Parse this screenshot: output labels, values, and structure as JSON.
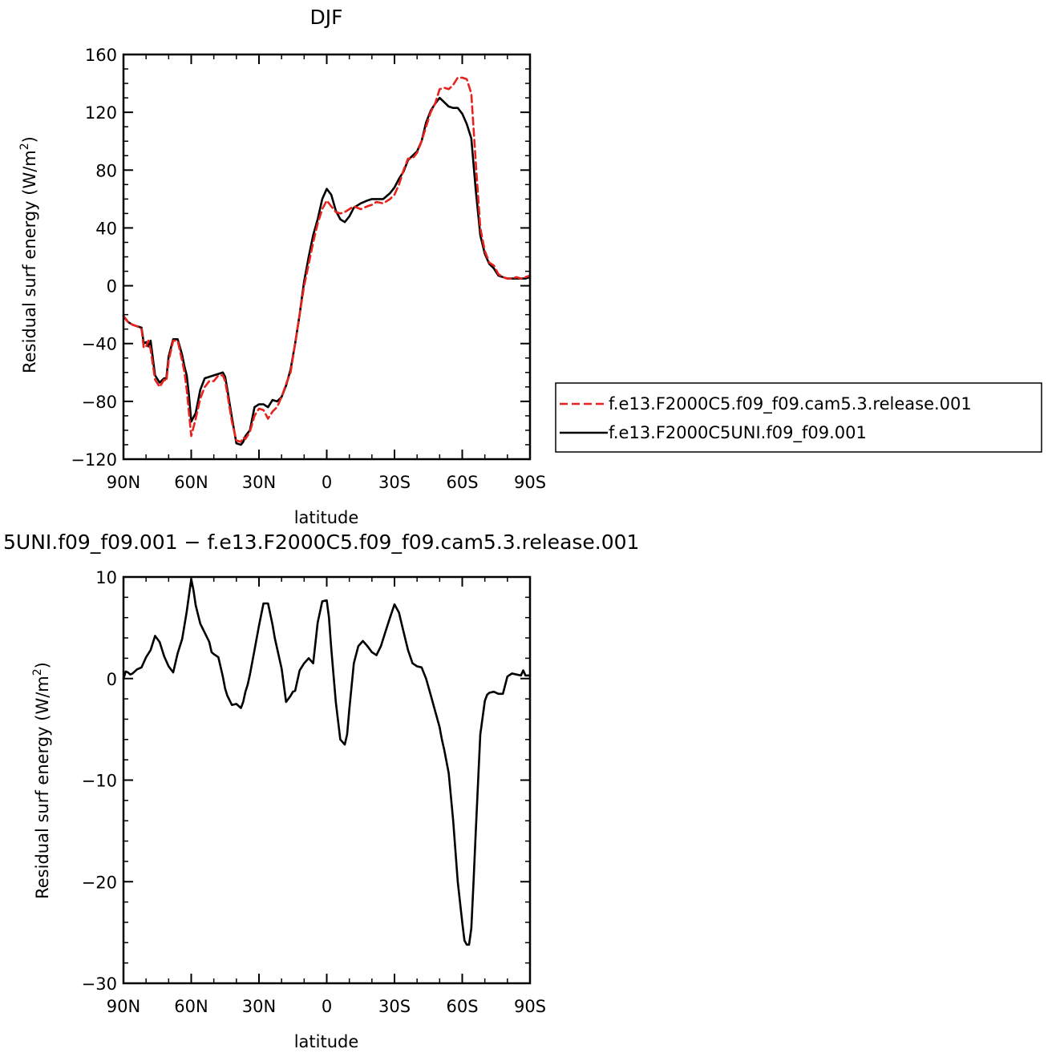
{
  "chart_data": [
    {
      "type": "line",
      "title": "DJF",
      "xlabel": "latitude",
      "ylabel": "Residual surf energy (W/m²)",
      "ylabel_main": "Residual surf energy (W/m",
      "ylabel_sup": "2",
      "ylabel_close": ")",
      "xlim": [
        -90,
        90
      ],
      "ylim": [
        -120,
        160
      ],
      "xticks": [
        -90,
        -60,
        -30,
        0,
        30,
        60,
        90
      ],
      "xtick_labels": [
        "90N",
        "60N",
        "30N",
        "0",
        "30S",
        "60S",
        "90S"
      ],
      "yticks": [
        -120,
        -80,
        -40,
        0,
        40,
        80,
        120,
        160
      ],
      "ytick_labels": [
        "−120",
        "−80",
        "−40",
        "0",
        "40",
        "80",
        "120",
        "160"
      ],
      "grid": false,
      "legend": "right",
      "series": [
        {
          "name": "f.e13.F2000C5.f09_f09.cam5.3.release.001",
          "color": "#e8221c",
          "dash": "dashed",
          "x": [
            -90,
            -88,
            -86,
            -84,
            -82,
            -81,
            -80,
            -79,
            -78,
            -76,
            -74,
            -72,
            -71,
            -70,
            -68,
            -66,
            -64,
            -63,
            -62,
            -61,
            -60,
            -58,
            -56,
            -54,
            -52,
            -50,
            -48,
            -46,
            -45,
            -44,
            -42,
            -40,
            -38,
            -37,
            -36,
            -34,
            -32,
            -30,
            -28,
            -26,
            -24,
            -22,
            -20,
            -18,
            -16,
            -14,
            -12,
            -10,
            -8,
            -6,
            -4,
            -2,
            0,
            2,
            4,
            6,
            8,
            10,
            12,
            15,
            18,
            20,
            22,
            25,
            28,
            30,
            32,
            34,
            36,
            38,
            40,
            42,
            44,
            46,
            48,
            50,
            52,
            54,
            56,
            58,
            60,
            62,
            64,
            66,
            68,
            70,
            72,
            74,
            76,
            78,
            80,
            82,
            84,
            86,
            88,
            90
          ],
          "y": [
            -21,
            -25,
            -27,
            -28,
            -30,
            -43,
            -42,
            -38,
            -44,
            -65,
            -70,
            -65,
            -66,
            -52,
            -38,
            -38,
            -52,
            -60,
            -72,
            -88,
            -104,
            -92,
            -78,
            -70,
            -66,
            -66,
            -62,
            -62,
            -66,
            -75,
            -94,
            -107,
            -108,
            -105,
            -106,
            -101,
            -90,
            -85,
            -86,
            -92,
            -87,
            -84,
            -77,
            -68,
            -60,
            -40,
            -20,
            0,
            15,
            30,
            43,
            53,
            59,
            55,
            51,
            50,
            51,
            53,
            55,
            53,
            55,
            56,
            58,
            57,
            60,
            63,
            70,
            80,
            88,
            88,
            92,
            100,
            110,
            120,
            126,
            136,
            137,
            136,
            139,
            144,
            144,
            143,
            133,
            85,
            40,
            24,
            16,
            14,
            8,
            6,
            5,
            5,
            6,
            5,
            6,
            7
          ]
        },
        {
          "name": "f.e13.F2000C5UNI.f09_f09.001",
          "color": "#000000",
          "dash": "solid",
          "x": [
            -90,
            -88,
            -86,
            -84,
            -82,
            -81,
            -80,
            -79,
            -78,
            -76,
            -74,
            -72,
            -71,
            -70,
            -68,
            -66,
            -64,
            -63,
            -62,
            -61,
            -60,
            -58,
            -56,
            -54,
            -52,
            -50,
            -48,
            -46,
            -45,
            -44,
            -42,
            -40,
            -38,
            -37,
            -36,
            -34,
            -32,
            -30,
            -28,
            -26,
            -24,
            -22,
            -20,
            -18,
            -16,
            -14,
            -12,
            -10,
            -8,
            -6,
            -4,
            -2,
            0,
            2,
            4,
            6,
            8,
            10,
            12,
            15,
            18,
            20,
            22,
            25,
            28,
            30,
            32,
            34,
            36,
            38,
            40,
            42,
            44,
            46,
            48,
            50,
            52,
            54,
            56,
            58,
            60,
            62,
            64,
            66,
            68,
            70,
            72,
            74,
            76,
            78,
            80,
            82,
            84,
            86,
            88,
            90
          ],
          "y": [
            -21,
            -25,
            -27,
            -28,
            -29,
            -40,
            -39,
            -42,
            -38,
            -62,
            -67,
            -64,
            -64,
            -49,
            -37,
            -37,
            -48,
            -56,
            -62,
            -76,
            -94,
            -88,
            -72,
            -64,
            -63,
            -62,
            -61,
            -60,
            -63,
            -72,
            -91,
            -109,
            -110,
            -108,
            -104,
            -100,
            -84,
            -82,
            -82,
            -84,
            -79,
            -80,
            -77,
            -69,
            -58,
            -40,
            -20,
            3,
            20,
            35,
            46,
            60,
            67,
            63,
            52,
            46,
            44,
            48,
            54,
            57,
            59,
            60,
            60,
            60,
            64,
            68,
            74,
            79,
            87,
            90,
            93,
            100,
            113,
            121,
            126,
            130,
            127,
            124,
            123,
            123,
            119,
            112,
            102,
            66,
            35,
            22,
            15,
            12,
            7,
            6,
            5,
            5,
            5,
            5,
            5,
            6
          ]
        }
      ]
    },
    {
      "type": "line",
      "title": "5UNI.f09_f09.001 − f.e13.F2000C5.f09_f09.cam5.3.release.001",
      "xlabel": "latitude",
      "ylabel": "Residual surf energy (W/m²)",
      "ylabel_main": "Residual surf energy (W/m",
      "ylabel_sup": "2",
      "ylabel_close": ")",
      "xlim": [
        -90,
        90
      ],
      "ylim": [
        -30,
        10
      ],
      "xticks": [
        -90,
        -60,
        -30,
        0,
        30,
        60,
        90
      ],
      "xtick_labels": [
        "90N",
        "60N",
        "30N",
        "0",
        "30S",
        "60S",
        "90S"
      ],
      "yticks": [
        -30,
        -20,
        -10,
        0,
        10
      ],
      "ytick_labels": [
        "−30",
        "−20",
        "−10",
        "0",
        "10"
      ],
      "grid": false,
      "series": [
        {
          "color": "#000000",
          "dash": "solid",
          "x": [
            -90,
            -89,
            -88,
            -87,
            -86,
            -84,
            -82,
            -80,
            -78,
            -76,
            -74,
            -72,
            -70,
            -68,
            -66,
            -64,
            -62,
            -60,
            -59,
            -58,
            -56,
            -54,
            -52,
            -51,
            -50,
            -48,
            -46,
            -45,
            -44,
            -42,
            -40,
            -38,
            -37,
            -36,
            -35,
            -34,
            -32,
            -30,
            -28,
            -26,
            -24,
            -23,
            -22,
            -20,
            -18,
            -16,
            -15,
            -14,
            -12,
            -10,
            -8,
            -6,
            -4,
            -2,
            0,
            1,
            2,
            4,
            6,
            8,
            9,
            10,
            12,
            14,
            16,
            18,
            20,
            22,
            24,
            26,
            28,
            30,
            32,
            34,
            36,
            38,
            40,
            42,
            44,
            46,
            48,
            50,
            51,
            52,
            54,
            56,
            58,
            60,
            61,
            62,
            63,
            64,
            65,
            66,
            68,
            70,
            71,
            72,
            74,
            76,
            78,
            80,
            82,
            84,
            86,
            87,
            88,
            90
          ],
          "y": [
            0,
            0.7,
            0.6,
            0.4,
            0.5,
            0.9,
            1.1,
            2.1,
            2.8,
            4.2,
            3.6,
            2.2,
            1.2,
            0.6,
            2.5,
            3.9,
            6.6,
            9.8,
            8.7,
            7.2,
            5.4,
            4.5,
            3.6,
            2.6,
            2.4,
            2.1,
            0.2,
            -1.0,
            -1.7,
            -2.6,
            -2.5,
            -2.9,
            -2.3,
            -1.3,
            -0.6,
            0.4,
            2.8,
            5.2,
            7.4,
            7.4,
            5.3,
            4.0,
            3.0,
            1.0,
            -2.3,
            -1.7,
            -1.3,
            -1.2,
            0.8,
            1.5,
            2.0,
            1.5,
            5.5,
            7.6,
            7.7,
            6.0,
            3.0,
            -2.3,
            -6.0,
            -6.5,
            -5.5,
            -3.0,
            1.5,
            3.2,
            3.7,
            3.2,
            2.6,
            2.3,
            3.2,
            4.6,
            6.0,
            7.3,
            6.5,
            4.6,
            2.8,
            1.5,
            1.2,
            1.1,
            0,
            -1.6,
            -3.2,
            -4.8,
            -6.0,
            -7.0,
            -9.3,
            -14.0,
            -20.0,
            -24.0,
            -25.8,
            -26.2,
            -26.2,
            -24.6,
            -20.0,
            -15.0,
            -5.5,
            -2.2,
            -1.6,
            -1.4,
            -1.3,
            -1.5,
            -1.5,
            0.2,
            0.5,
            0.4,
            0.3,
            0.8,
            0.3,
            0.3
          ]
        }
      ]
    }
  ]
}
